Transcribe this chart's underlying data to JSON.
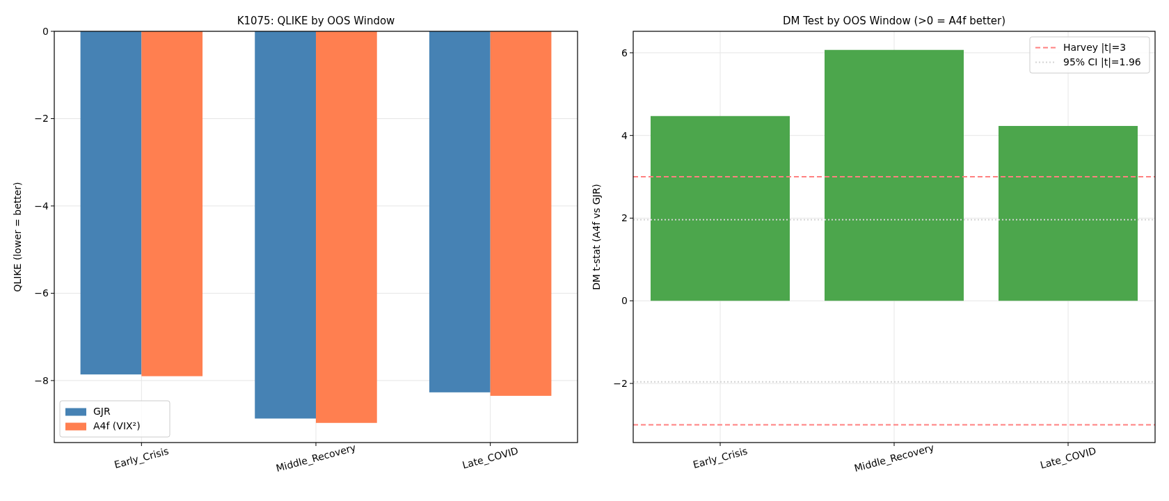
{
  "chart_data": [
    {
      "type": "bar",
      "title": "K1075: QLIKE by OOS Window",
      "ylabel": "QLIKE (lower = better)",
      "categories": [
        "Early_Crisis",
        "Middle_Recovery",
        "Late_COVID"
      ],
      "series": [
        {
          "name": "GJR",
          "color": "#4682b4",
          "values": [
            -7.86,
            -8.87,
            -8.27
          ]
        },
        {
          "name": "A4f (VIX²)",
          "color": "#ff7f50",
          "values": [
            -7.9,
            -8.97,
            -8.35
          ]
        }
      ],
      "ylim": [
        -9.42,
        0
      ],
      "yticks": [
        {
          "value": -8,
          "label": "−8"
        },
        {
          "value": -6,
          "label": "−6"
        },
        {
          "value": -4,
          "label": "−4"
        },
        {
          "value": -2,
          "label": "−2"
        },
        0
      ],
      "grid": true,
      "legend": "bottom left"
    },
    {
      "type": "bar",
      "title": "DM Test by OOS Window (>0 = A4f better)",
      "ylabel": "DM t-stat (A4f vs GJR)",
      "categories": [
        "Early_Crisis",
        "Middle_Recovery",
        "Late_COVID"
      ],
      "series": [
        {
          "color": "#4ca64c",
          "values": [
            4.47,
            6.07,
            4.23
          ]
        }
      ],
      "ylim": [
        -3.43,
        6.52
      ],
      "yticks": [
        {
          "value": -2,
          "label": "−2"
        },
        0,
        2,
        4,
        6
      ],
      "grid": true,
      "legend": "top right",
      "ref_lines": [
        {
          "axis": "y",
          "value": 3,
          "label": "Harvey |t|=3",
          "color": "#ff8080",
          "line_style": "dashed"
        },
        {
          "axis": "y",
          "value": -3,
          "label": null,
          "color": "#ff8080",
          "line_style": "dashed"
        },
        {
          "axis": "y",
          "value": 1.96,
          "label": "95% CI |t|=1.96",
          "color": "#d3d3d3",
          "line_style": "dotted"
        },
        {
          "axis": "y",
          "value": -1.96,
          "label": null,
          "color": "#d3d3d3",
          "line_style": "dotted"
        }
      ]
    }
  ]
}
